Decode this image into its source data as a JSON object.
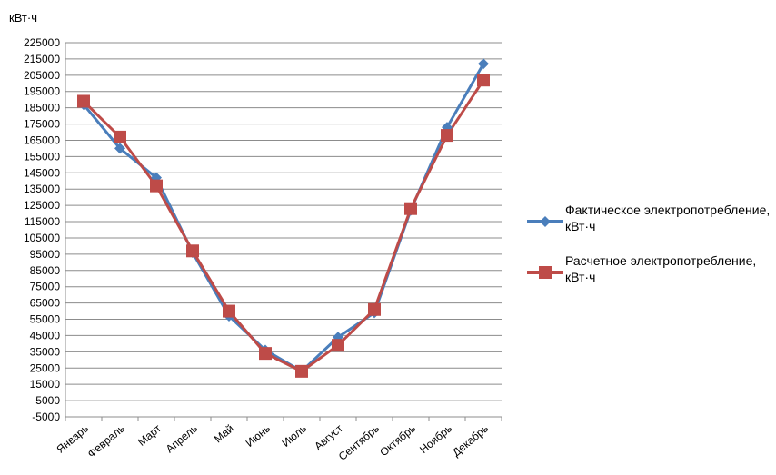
{
  "unit_label": "кВт·ч",
  "chart_data": {
    "type": "line",
    "title": "",
    "ylabel": "кВт·ч",
    "xlabel": "",
    "categories": [
      "Январь",
      "Февраль",
      "Март",
      "Апрель",
      "Май",
      "Июнь",
      "Июль",
      "Август",
      "Сентябрь",
      "Октябрь",
      "Ноябрь",
      "Декабрь"
    ],
    "y_ticks": [
      -5000,
      5000,
      15000,
      25000,
      35000,
      45000,
      55000,
      65000,
      75000,
      85000,
      95000,
      105000,
      115000,
      125000,
      135000,
      145000,
      155000,
      165000,
      175000,
      185000,
      195000,
      205000,
      215000,
      225000
    ],
    "ylim": [
      -5000,
      225000
    ],
    "grid": true,
    "legend_position": "right",
    "series": [
      {
        "name": "Фактическое электропотребление, кВт·ч",
        "color": "#4a7ebb",
        "marker": "diamond",
        "values": [
          187000,
          160000,
          142000,
          96000,
          57000,
          36000,
          23000,
          44000,
          59000,
          122000,
          173000,
          212000
        ]
      },
      {
        "name": "Расчетное электропотребление, кВт·ч",
        "color": "#be4b48",
        "marker": "square",
        "values": [
          189000,
          167000,
          137000,
          97000,
          60000,
          34000,
          23000,
          39000,
          61000,
          123000,
          168000,
          202000
        ]
      }
    ]
  }
}
